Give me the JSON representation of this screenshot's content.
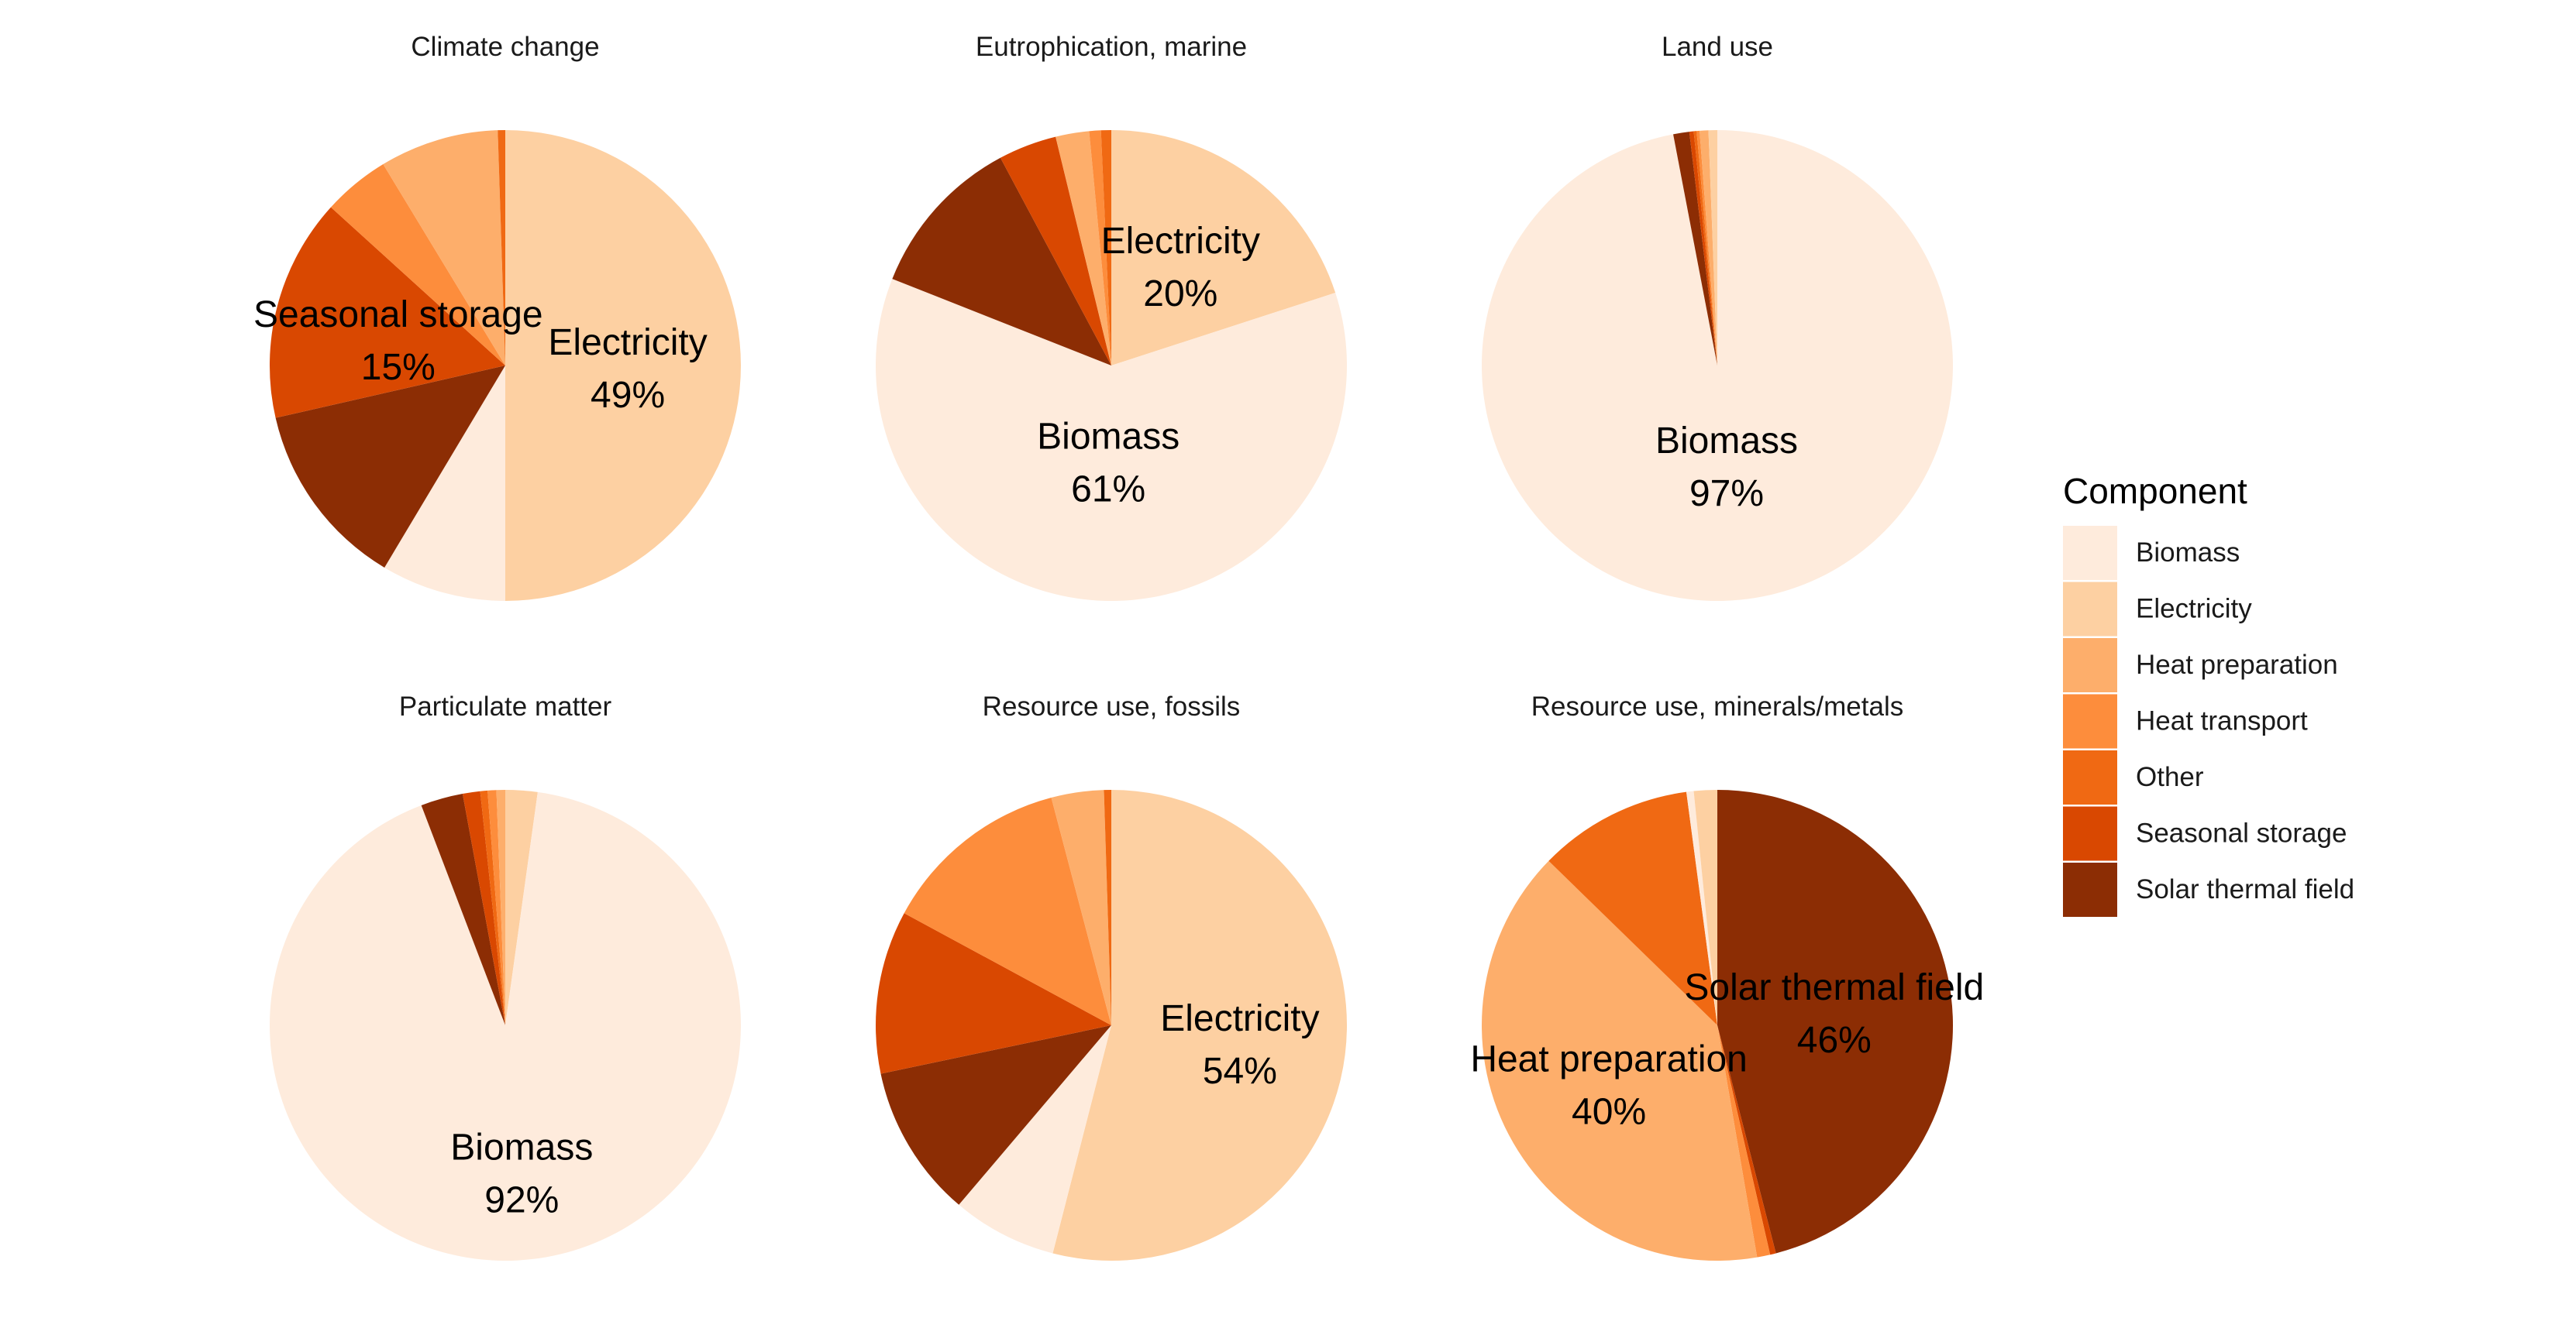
{
  "colors": {
    "Biomass": "#feebdc",
    "Electricity": "#fdd0a2",
    "Heat preparation": "#fdae6b",
    "Heat transport": "#fd8d3c",
    "Other": "#f06913",
    "Seasonal storage": "#d94801",
    "Solar thermal field": "#8c2d04"
  },
  "legend": {
    "title": "Component",
    "items": [
      "Biomass",
      "Electricity",
      "Heat preparation",
      "Heat transport",
      "Other",
      "Seasonal storage",
      "Solar thermal field"
    ]
  },
  "chart_data": [
    {
      "type": "pie",
      "title": "Climate change",
      "slices": [
        {
          "label": "Electricity",
          "value": 49
        },
        {
          "label": "Biomass",
          "value": 8.4
        },
        {
          "label": "Solar thermal field",
          "value": 12.6
        },
        {
          "label": "Seasonal storage",
          "value": 15
        },
        {
          "label": "Heat transport",
          "value": 4.5
        },
        {
          "label": "Heat preparation",
          "value": 8
        },
        {
          "label": "Other",
          "value": 0.5
        }
      ],
      "labels": [
        {
          "component": "Electricity",
          "name": "Electricity",
          "percent": "49%"
        },
        {
          "component": "Seasonal storage",
          "name": "Seasonal storage",
          "percent": "15%"
        }
      ]
    },
    {
      "type": "pie",
      "title": "Eutrophication, marine",
      "slices": [
        {
          "label": "Electricity",
          "value": 20
        },
        {
          "label": "Biomass",
          "value": 61
        },
        {
          "label": "Solar thermal field",
          "value": 11.2
        },
        {
          "label": "Seasonal storage",
          "value": 4
        },
        {
          "label": "Heat preparation",
          "value": 2.3
        },
        {
          "label": "Heat transport",
          "value": 0.8
        },
        {
          "label": "Other",
          "value": 0.7
        }
      ],
      "labels": [
        {
          "component": "Electricity",
          "name": "Electricity",
          "percent": "20%"
        },
        {
          "component": "Biomass",
          "name": "Biomass",
          "percent": "61%"
        }
      ]
    },
    {
      "type": "pie",
      "title": "Land use",
      "slices": [
        {
          "label": "Biomass",
          "value": 97
        },
        {
          "label": "Solar thermal field",
          "value": 1.1
        },
        {
          "label": "Seasonal storage",
          "value": 0.3
        },
        {
          "label": "Other",
          "value": 0.2
        },
        {
          "label": "Heat transport",
          "value": 0.2
        },
        {
          "label": "Heat preparation",
          "value": 0.6
        },
        {
          "label": "Electricity",
          "value": 0.6
        }
      ],
      "labels": [
        {
          "component": "Biomass",
          "name": "Biomass",
          "percent": "97%"
        }
      ]
    },
    {
      "type": "pie",
      "title": "Particulate matter",
      "slices": [
        {
          "label": "Electricity",
          "value": 2.2
        },
        {
          "label": "Biomass",
          "value": 92
        },
        {
          "label": "Solar thermal field",
          "value": 2.9
        },
        {
          "label": "Seasonal storage",
          "value": 1.2
        },
        {
          "label": "Other",
          "value": 0.5
        },
        {
          "label": "Heat transport",
          "value": 0.6
        },
        {
          "label": "Heat preparation",
          "value": 0.6
        }
      ],
      "labels": [
        {
          "component": "Biomass",
          "name": "Biomass",
          "percent": "92%"
        }
      ]
    },
    {
      "type": "pie",
      "title": "Resource use, fossils",
      "slices": [
        {
          "label": "Electricity",
          "value": 54
        },
        {
          "label": "Biomass",
          "value": 7.2
        },
        {
          "label": "Solar thermal field",
          "value": 10.5
        },
        {
          "label": "Seasonal storage",
          "value": 11.2
        },
        {
          "label": "Heat transport",
          "value": 13
        },
        {
          "label": "Heat preparation",
          "value": 3.6
        },
        {
          "label": "Other",
          "value": 0.5
        }
      ],
      "labels": [
        {
          "component": "Electricity",
          "name": "Electricity",
          "percent": "54%"
        }
      ]
    },
    {
      "type": "pie",
      "title": "Resource use, minerals/metals",
      "slices": [
        {
          "label": "Solar thermal field",
          "value": 46
        },
        {
          "label": "Seasonal storage",
          "value": 0.4
        },
        {
          "label": "Heat transport",
          "value": 0.9
        },
        {
          "label": "Heat preparation",
          "value": 40
        },
        {
          "label": "Other",
          "value": 10.6
        },
        {
          "label": "Biomass",
          "value": 0.5
        },
        {
          "label": "Electricity",
          "value": 1.6
        }
      ],
      "labels": [
        {
          "component": "Heat preparation",
          "name": "Heat preparation",
          "percent": "40%"
        },
        {
          "component": "Solar thermal field",
          "name": "Solar thermal field",
          "percent": "46%"
        }
      ]
    }
  ]
}
